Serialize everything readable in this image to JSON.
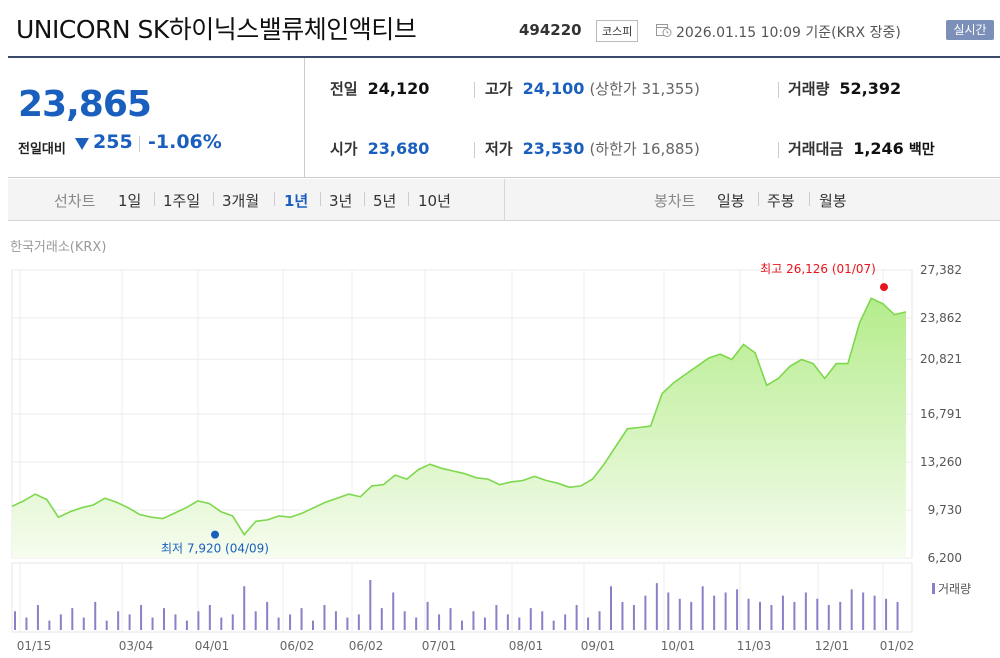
{
  "header": {
    "title": "UNICORN SK하이닉스밸류체인액티브",
    "code": "494220",
    "market": "코스피",
    "datetime": "2026.01.15 10:09 기준(KRX 장중)",
    "realtime_btn": "실시간"
  },
  "price": {
    "current": "23,865",
    "change_label": "전일대비",
    "change_value": "255",
    "change_pct": "-1.06%",
    "direction": "down"
  },
  "stats": {
    "prev_close": {
      "label": "전일",
      "value": "24,120"
    },
    "high": {
      "label": "고가",
      "value": "24,100",
      "sub": "(상한가 31,355)"
    },
    "volume": {
      "label": "거래량",
      "value": "52,392"
    },
    "open": {
      "label": "시가",
      "value": "23,680"
    },
    "low": {
      "label": "저가",
      "value": "23,530",
      "sub": "(하한가 16,885)"
    },
    "turnover": {
      "label": "거래대금",
      "value": "1,246",
      "unit": "백만"
    }
  },
  "tabs": {
    "line_group": "선차트",
    "line_periods": [
      "1일",
      "1주일",
      "3개월",
      "1년",
      "3년",
      "5년",
      "10년"
    ],
    "active_period": "1년",
    "candle_group": "봉차트",
    "candle_periods": [
      "일봉",
      "주봉",
      "월봉"
    ]
  },
  "colors": {
    "blue": "#1a5fbd",
    "red": "#e8141c",
    "area_line": "#7ed84d",
    "area_fill_top": "#b5ec8c",
    "volume_bar": "#8a80c8"
  },
  "chart_data": {
    "type": "area",
    "source": "한국거래소(KRX)",
    "y_ticks": [
      27382,
      23862,
      20821,
      16791,
      13260,
      9730,
      6200
    ],
    "ylim": [
      6200,
      27382
    ],
    "x_ticks": [
      "01/15",
      "03/04",
      "04/01",
      "06/02",
      "06/02",
      "07/01",
      "08/01",
      "09/01",
      "10/01",
      "11/03",
      "12/01",
      "01/02"
    ],
    "grid": true,
    "max_label": "최고 26,126 (01/07)",
    "min_label": "최저 7,920 (04/09)",
    "max": {
      "value": 26126,
      "date": "01/07"
    },
    "min": {
      "value": 7920,
      "date": "04/09"
    },
    "series": [
      {
        "values": [
          10000,
          10400,
          10900,
          10500,
          9200,
          9600,
          9900,
          10100,
          10600,
          10300,
          9900,
          9400,
          9200,
          9100,
          9500,
          9900,
          10400,
          10200,
          9600,
          9300,
          7920,
          8900,
          9000,
          9300,
          9200,
          9500,
          9900,
          10300,
          10600,
          10900,
          10700,
          11500,
          11600,
          12300,
          12000,
          12700,
          13100,
          12800,
          12600,
          12400,
          12100,
          12000,
          11600,
          11800,
          11900,
          12200,
          11900,
          11700,
          11400,
          11500,
          12000,
          13100,
          14400,
          15700,
          15800,
          15900,
          18300,
          19100,
          19700,
          20300,
          20900,
          21200,
          20800,
          21900,
          21300,
          18900,
          19400,
          20300,
          20800,
          20500,
          19400,
          20500,
          20500,
          23500,
          25300,
          24900,
          24100,
          24300
        ]
      }
    ],
    "volume": {
      "legend": "거래량",
      "values": [
        6,
        4,
        8,
        3,
        5,
        7,
        4,
        9,
        3,
        6,
        5,
        8,
        4,
        7,
        5,
        3,
        6,
        8,
        4,
        5,
        14,
        6,
        9,
        4,
        5,
        7,
        3,
        8,
        6,
        4,
        5,
        16,
        7,
        12,
        6,
        4,
        9,
        5,
        7,
        3,
        6,
        4,
        8,
        5,
        4,
        7,
        6,
        3,
        5,
        8,
        4,
        6,
        14,
        9,
        8,
        11,
        15,
        12,
        10,
        9,
        14,
        11,
        12,
        13,
        10,
        9,
        8,
        11,
        9,
        12,
        10,
        8,
        9,
        13,
        12,
        11,
        10,
        9
      ]
    }
  }
}
